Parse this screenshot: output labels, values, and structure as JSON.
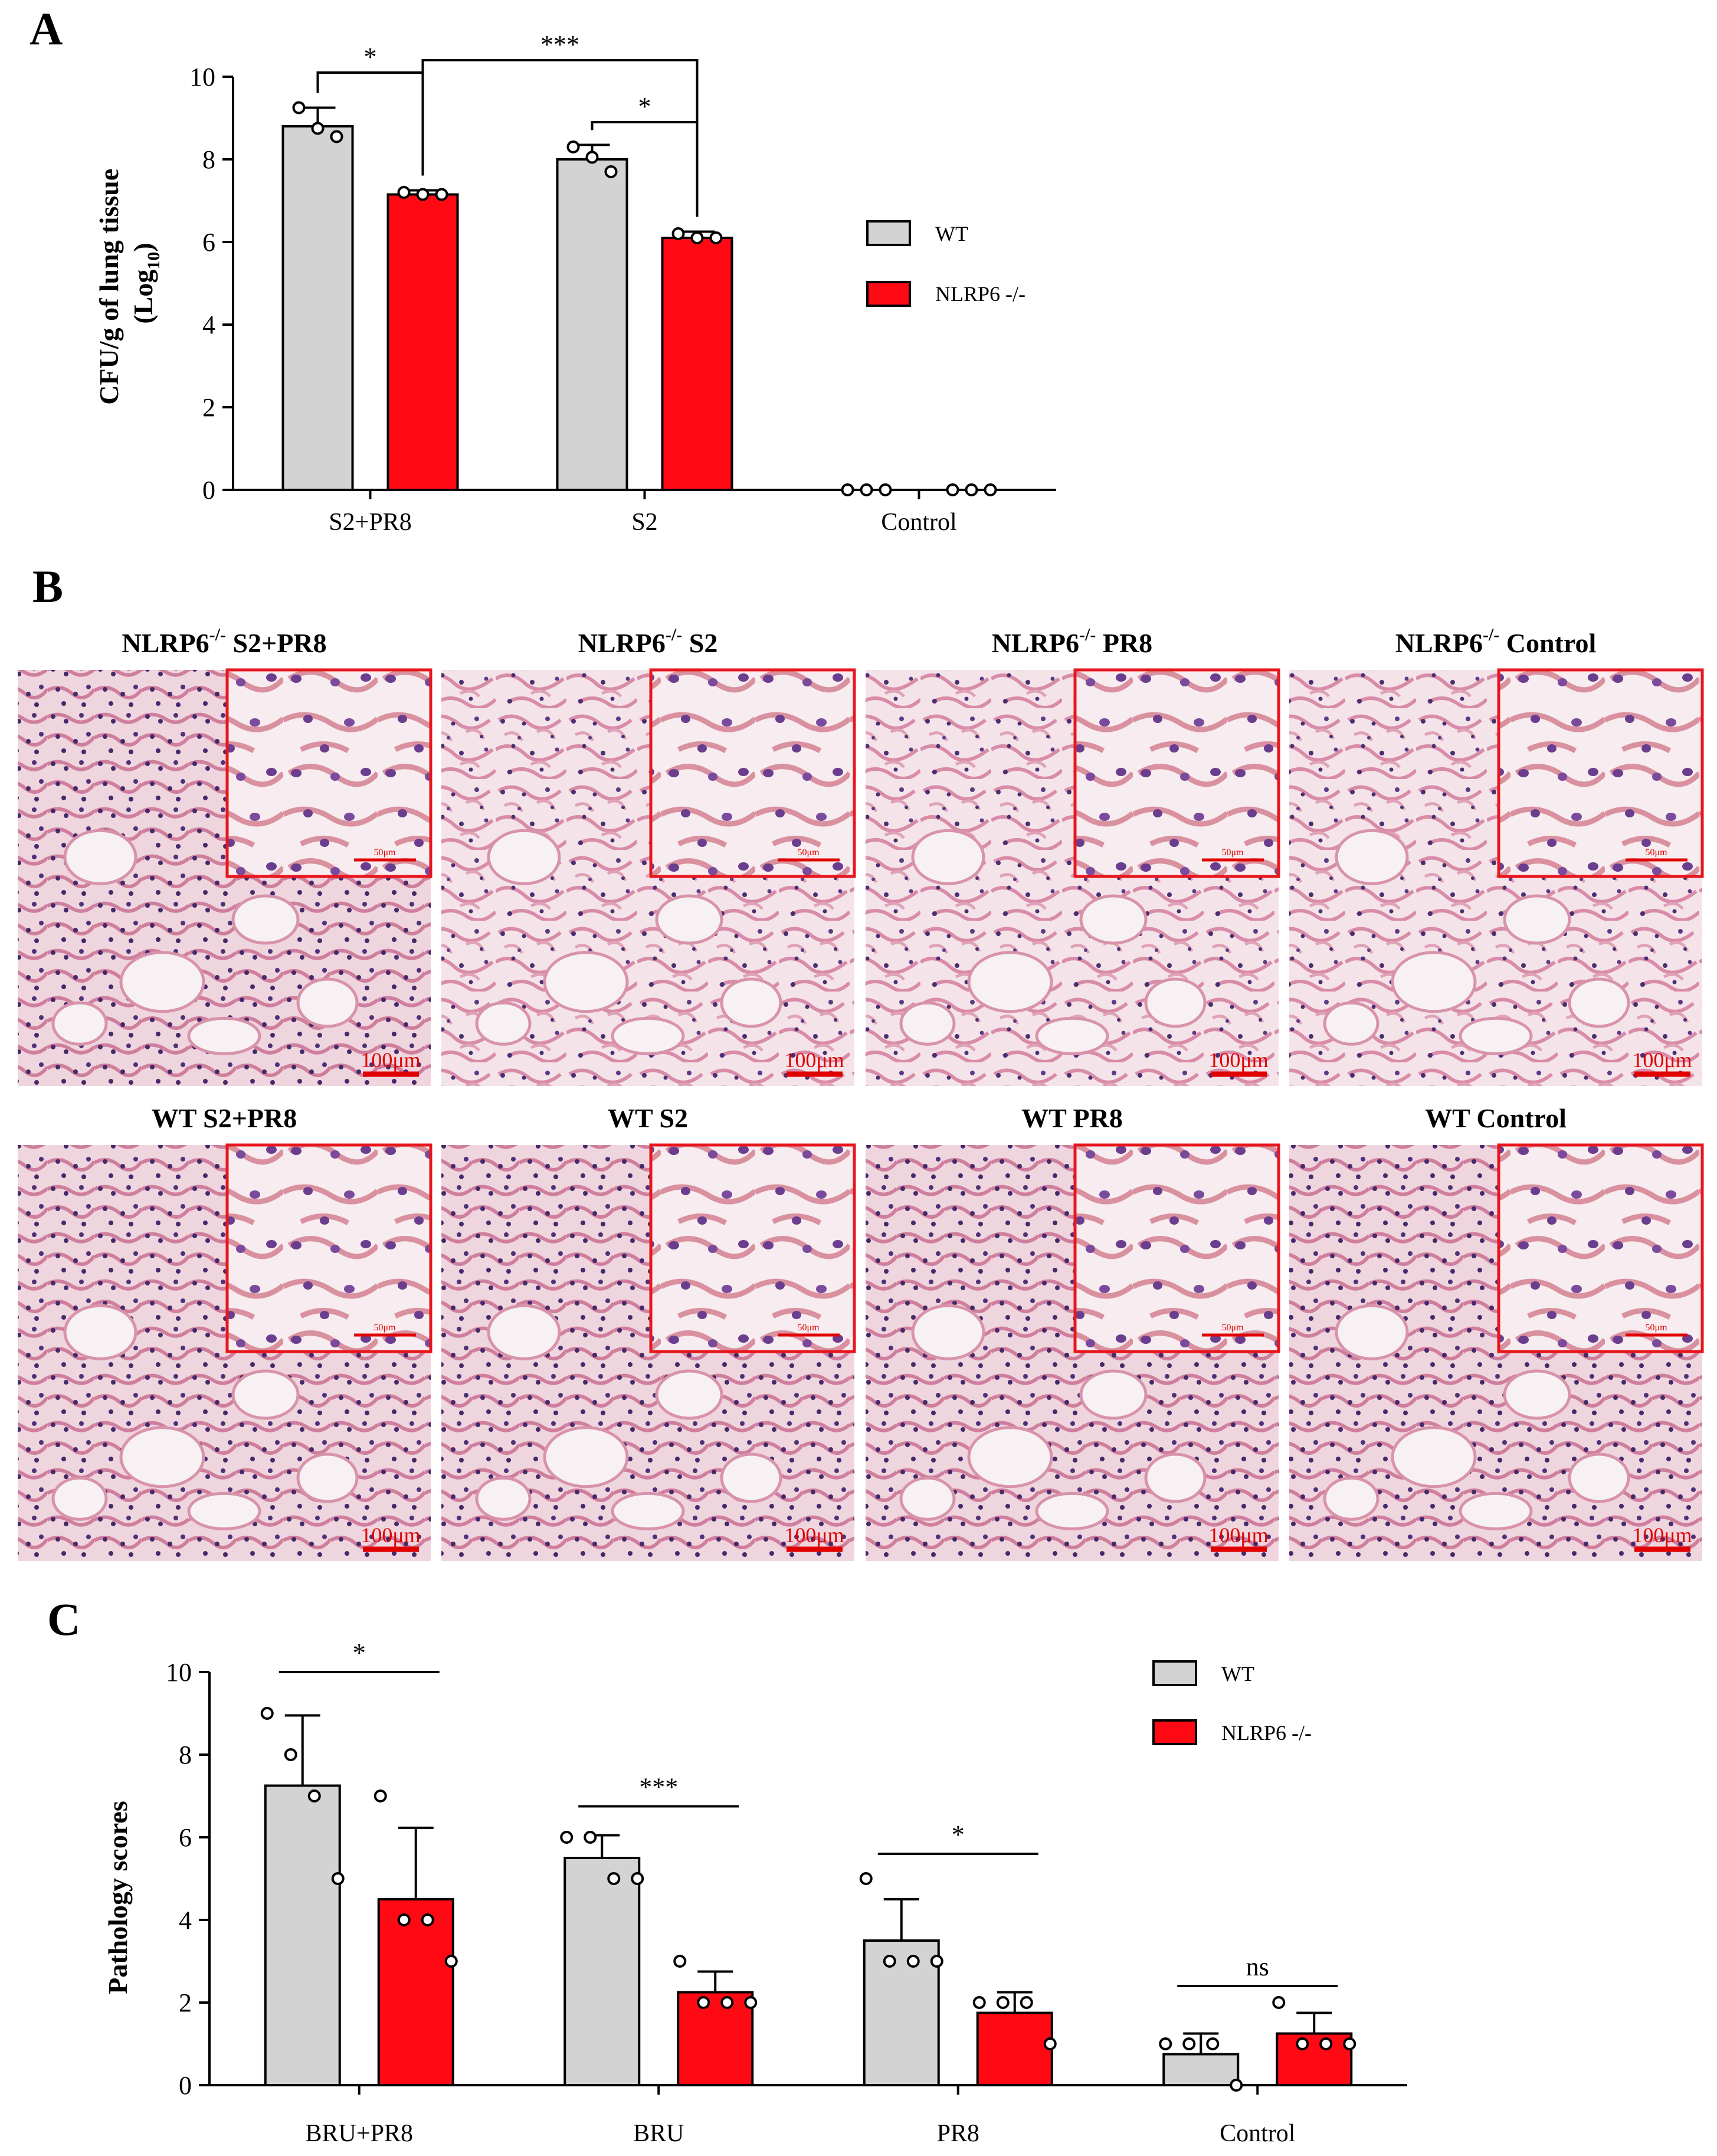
{
  "panels": {
    "A": "A",
    "B": "B",
    "C": "C"
  },
  "colors": {
    "wt": "#d3d3d3",
    "ko": "#ff0a14",
    "tissue_bg": "#f2dde3",
    "tissue_stain": "#d88ca8",
    "nuclei": "#4a2e72",
    "inset_border": "#e8161c"
  },
  "chart_data": [
    {
      "panel": "A",
      "type": "bar",
      "title": "",
      "ylabel": "CFU/g of lung tissue",
      "ylabel_line2_prefix": "(Log",
      "ylabel_line2_sub": "10",
      "ylabel_line2_suffix": ")",
      "xlabel": "",
      "ylim": [
        0,
        10
      ],
      "yticks": [
        0,
        2,
        4,
        6,
        8,
        10
      ],
      "categories": [
        "S2+PR8",
        "S2",
        "Control"
      ],
      "series": [
        {
          "name": "WT",
          "values": [
            8.8,
            8.0,
            0
          ],
          "errors": [
            0.45,
            0.35,
            0
          ],
          "points": [
            [
              9.25,
              8.75,
              8.55
            ],
            [
              8.3,
              8.05,
              7.7
            ],
            [
              0,
              0,
              0
            ]
          ]
        },
        {
          "name": "NLRP6 -/-",
          "values": [
            7.15,
            6.1,
            0
          ],
          "errors": [
            0.1,
            0.15,
            0
          ],
          "points": [
            [
              7.2,
              7.15,
              7.15
            ],
            [
              6.2,
              6.1,
              6.1
            ],
            [
              0,
              0,
              0
            ]
          ]
        }
      ],
      "significance": [
        {
          "label": "*",
          "from": [
            0,
            0
          ],
          "to": [
            0,
            1
          ],
          "y": 10.1
        },
        {
          "label": "***",
          "from": [
            0,
            1
          ],
          "to": [
            1,
            1
          ],
          "y": 10.4
        },
        {
          "label": "*",
          "from": [
            1,
            0
          ],
          "to": [
            1,
            1
          ],
          "y": 8.9
        }
      ],
      "legend": {
        "placement": "right",
        "entries": [
          "WT",
          "NLRP6 -/-"
        ]
      },
      "grid": false
    },
    {
      "panel": "C",
      "type": "bar",
      "title": "",
      "ylabel": "Pathology scores",
      "xlabel": "",
      "ylim": [
        0,
        10
      ],
      "yticks": [
        0,
        2,
        4,
        6,
        8,
        10
      ],
      "categories": [
        "BRU+PR8",
        "BRU",
        "PR8",
        "Control"
      ],
      "series": [
        {
          "name": "WT",
          "values": [
            7.25,
            5.5,
            3.5,
            0.75
          ],
          "errors": [
            1.7,
            0.55,
            1.0,
            0.5
          ],
          "points": [
            [
              9.0,
              8.0,
              7.0,
              5.0
            ],
            [
              6.0,
              6.0,
              5.0,
              5.0
            ],
            [
              5.0,
              3.0,
              3.0,
              3.0
            ],
            [
              1.0,
              1.0,
              1.0,
              0.0
            ]
          ]
        },
        {
          "name": "NLRP6 -/-",
          "values": [
            4.5,
            2.25,
            1.75,
            1.25
          ],
          "errors": [
            1.73,
            0.5,
            0.5,
            0.5
          ],
          "points": [
            [
              7.0,
              4.0,
              4.0,
              3.0
            ],
            [
              3.0,
              2.0,
              2.0,
              2.0
            ],
            [
              2.0,
              2.0,
              2.0,
              1.0
            ],
            [
              2.0,
              1.0,
              1.0,
              1.0
            ]
          ]
        }
      ],
      "significance": [
        {
          "label": "*",
          "category": 0,
          "y": 10.0
        },
        {
          "label": "***",
          "category": 1,
          "y": 6.75
        },
        {
          "label": "*",
          "category": 2,
          "y": 5.6
        },
        {
          "label": "ns",
          "category": 3,
          "y": 2.4
        }
      ],
      "legend": {
        "placement": "top-right",
        "entries": [
          "WT",
          "NLRP6 -/-"
        ]
      },
      "grid": false
    }
  ],
  "micrographs": {
    "top_row": [
      {
        "title_prefix": "NLRP6",
        "title_sup": "-/-",
        "title_suffix": " S2+PR8",
        "scale_main": "100μm",
        "scale_inset": "50μm"
      },
      {
        "title_prefix": "NLRP6",
        "title_sup": "-/-",
        "title_suffix": " S2",
        "scale_main": "100μm",
        "scale_inset": "50μm"
      },
      {
        "title_prefix": "NLRP6",
        "title_sup": "-/-",
        "title_suffix": " PR8",
        "scale_main": "100μm",
        "scale_inset": "50μm"
      },
      {
        "title_prefix": "NLRP6",
        "title_sup": "-/-",
        "title_suffix": " Control",
        "scale_main": "100μm",
        "scale_inset": "50μm"
      }
    ],
    "bottom_row": [
      {
        "title_prefix": "WT  S2+PR8",
        "title_sup": "",
        "title_suffix": "",
        "scale_main": "100μm",
        "scale_inset": "50μm"
      },
      {
        "title_prefix": "WT  S2",
        "title_sup": "",
        "title_suffix": "",
        "scale_main": "100μm",
        "scale_inset": "50μm"
      },
      {
        "title_prefix": "WT  PR8",
        "title_sup": "",
        "title_suffix": "",
        "scale_main": "100μm",
        "scale_inset": "50μm"
      },
      {
        "title_prefix": "WT  Control",
        "title_sup": "",
        "title_suffix": "",
        "scale_main": "100μm",
        "scale_inset": "50μm"
      }
    ]
  }
}
